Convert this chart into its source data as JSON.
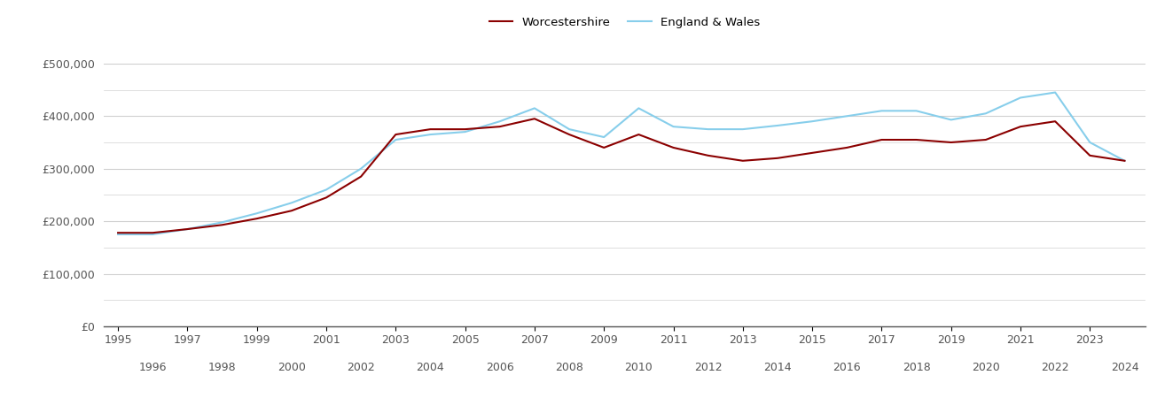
{
  "years": [
    1995,
    1996,
    1997,
    1998,
    1999,
    2000,
    2001,
    2002,
    2003,
    2004,
    2005,
    2006,
    2007,
    2008,
    2009,
    2010,
    2011,
    2012,
    2013,
    2014,
    2015,
    2016,
    2017,
    2018,
    2019,
    2020,
    2021,
    2022,
    2023,
    2024
  ],
  "worcestershire": [
    178000,
    178000,
    185000,
    193000,
    205000,
    220000,
    245000,
    285000,
    365000,
    375000,
    375000,
    380000,
    395000,
    365000,
    340000,
    365000,
    340000,
    325000,
    315000,
    320000,
    330000,
    340000,
    355000,
    355000,
    350000,
    355000,
    380000,
    390000,
    325000,
    315000
  ],
  "england_wales": [
    175000,
    175000,
    185000,
    198000,
    215000,
    235000,
    260000,
    300000,
    355000,
    365000,
    370000,
    390000,
    415000,
    375000,
    360000,
    415000,
    380000,
    375000,
    375000,
    382000,
    390000,
    400000,
    410000,
    410000,
    393000,
    405000,
    435000,
    445000,
    350000,
    315000
  ],
  "worcestershire_color": "#8B0000",
  "england_wales_color": "#87CEEB",
  "worcestershire_label": "Worcestershire",
  "england_wales_label": "England & Wales",
  "ylim": [
    0,
    530000
  ],
  "yticks": [
    0,
    100000,
    200000,
    300000,
    400000,
    500000
  ],
  "ytick_labels": [
    "£0",
    "£100,000",
    "£200,000",
    "£300,000",
    "£400,000",
    "£500,000"
  ],
  "background_color": "#ffffff",
  "grid_color": "#d0d0d0",
  "line_width": 1.5,
  "xlim_left": 1994.6,
  "xlim_right": 2024.6
}
